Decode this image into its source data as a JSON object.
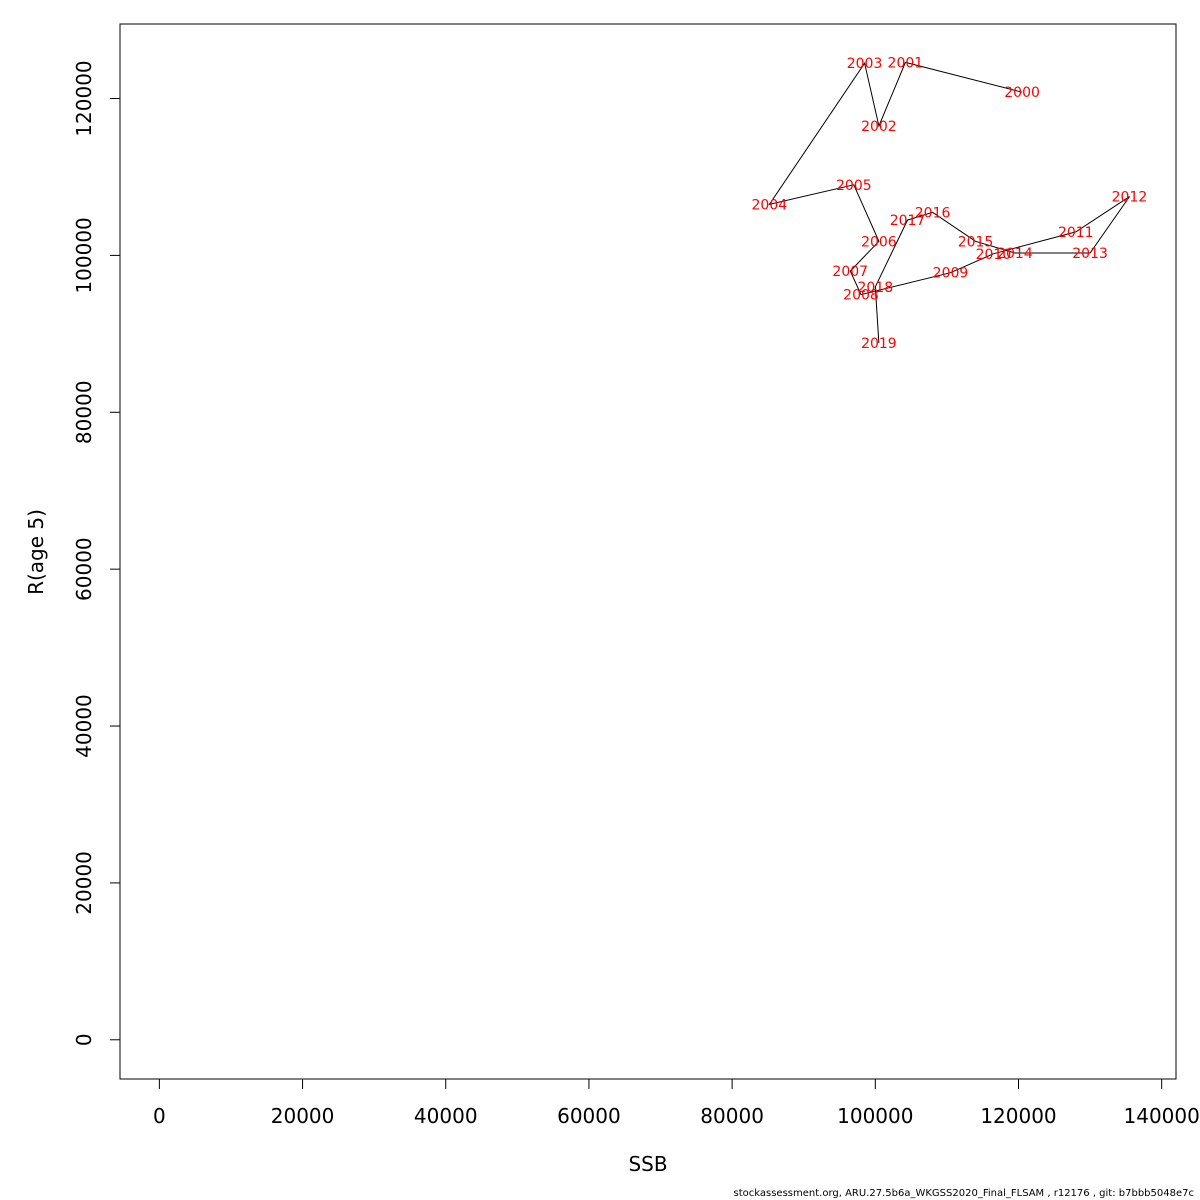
{
  "chart_data": {
    "type": "line",
    "xlabel": "SSB",
    "ylabel": "R(age 5)",
    "xlim": [
      -5500,
      142000
    ],
    "ylim": [
      -5000,
      129500
    ],
    "x_ticks": [
      0,
      20000,
      40000,
      60000,
      80000,
      100000,
      120000,
      140000
    ],
    "y_ticks": [
      0,
      20000,
      40000,
      60000,
      80000,
      100000,
      120000
    ],
    "x_tick_labels": [
      "0",
      "20000",
      "40000",
      "60000",
      "80000",
      "100000",
      "120000",
      "140000"
    ],
    "y_tick_labels": [
      "0",
      "20000",
      "40000",
      "60000",
      "80000",
      "100000",
      "120000"
    ],
    "line_color": "#000000",
    "label_color": "#ff0000",
    "grid": false,
    "points": [
      {
        "year": "2000",
        "x": 120500,
        "y": 120800
      },
      {
        "year": "2001",
        "x": 104200,
        "y": 124600
      },
      {
        "year": "2002",
        "x": 100500,
        "y": 116500
      },
      {
        "year": "2003",
        "x": 98500,
        "y": 124500
      },
      {
        "year": "2004",
        "x": 85200,
        "y": 106500
      },
      {
        "year": "2005",
        "x": 97000,
        "y": 109000
      },
      {
        "year": "2006",
        "x": 100500,
        "y": 101800
      },
      {
        "year": "2007",
        "x": 96500,
        "y": 98000
      },
      {
        "year": "2008",
        "x": 98000,
        "y": 95000
      },
      {
        "year": "2009",
        "x": 110500,
        "y": 97800
      },
      {
        "year": "2010",
        "x": 116500,
        "y": 100200
      },
      {
        "year": "2011",
        "x": 128000,
        "y": 103000
      },
      {
        "year": "2012",
        "x": 135500,
        "y": 107500
      },
      {
        "year": "2013",
        "x": 130000,
        "y": 100300
      },
      {
        "year": "2014",
        "x": 119500,
        "y": 100300
      },
      {
        "year": "2015",
        "x": 114000,
        "y": 101800
      },
      {
        "year": "2016",
        "x": 108000,
        "y": 105500
      },
      {
        "year": "2017",
        "x": 104500,
        "y": 104500
      },
      {
        "year": "2018",
        "x": 100000,
        "y": 96000
      },
      {
        "year": "2019",
        "x": 100500,
        "y": 88800
      }
    ]
  },
  "footer": {
    "text": "stockassessment.org, ARU.27.5b6a_WKGSS2020_Final_FLSAM , r12176 , git: b7bbb5048e7c"
  }
}
